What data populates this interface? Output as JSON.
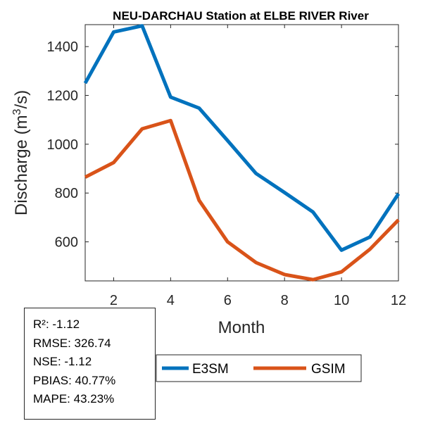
{
  "chart_data": {
    "type": "line",
    "title": "NEU-DARCHAU  Station at  ELBE RIVER  River",
    "xlabel": "Month",
    "ylabel_main": "Discharge (m",
    "ylabel_sup": "3",
    "ylabel_end": "/s)",
    "xlim": [
      1,
      12
    ],
    "ylim": [
      440,
      1490
    ],
    "xticks": [
      2,
      4,
      6,
      8,
      10,
      12
    ],
    "yticks": [
      600,
      800,
      1000,
      1200,
      1400
    ],
    "x": [
      1,
      2,
      3,
      4,
      5,
      6,
      7,
      8,
      9,
      10,
      11,
      12
    ],
    "series": [
      {
        "name": "E3SM",
        "color": "#0072BD",
        "values": [
          1250,
          1460,
          1485,
          1193,
          1148,
          1015,
          880,
          802,
          722,
          566,
          620,
          797
        ]
      },
      {
        "name": "GSIM",
        "color": "#D95319",
        "values": [
          865,
          925,
          1063,
          1097,
          770,
          600,
          515,
          466,
          445,
          477,
          570,
          690
        ]
      }
    ]
  },
  "stats": {
    "r2": "R²: -1.12",
    "rmse": "RMSE: 326.74",
    "nse": "NSE: -1.12",
    "pbias": "PBIAS: 40.77%",
    "mape": "MAPE: 43.23%"
  }
}
